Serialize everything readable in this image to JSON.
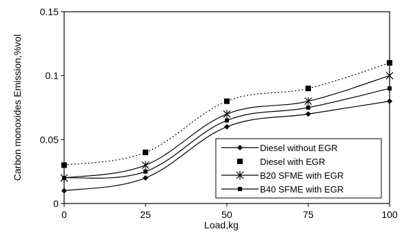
{
  "chart_data": {
    "type": "line",
    "title": "",
    "xlabel": "Load,kg",
    "ylabel": "Carbon monoxides Emission,%vol",
    "x": [
      0,
      25,
      50,
      75,
      100
    ],
    "xlim": [
      0,
      100
    ],
    "ylim": [
      0,
      0.15
    ],
    "x_ticks": [
      "0",
      "25",
      "50",
      "75",
      "100"
    ],
    "y_ticks": [
      "0",
      "0.05",
      "0.1",
      "0.15"
    ],
    "grid": false,
    "legend_position": "bottom-right",
    "series": [
      {
        "name": "Diesel without  EGR",
        "values": [
          0.01,
          0.02,
          0.06,
          0.07,
          0.08
        ],
        "marker": "diamond",
        "line": "solid",
        "color": "#000000"
      },
      {
        "name": "Diesel with EGR",
        "values": [
          0.03,
          0.04,
          0.08,
          0.09,
          0.11
        ],
        "marker": "square",
        "line": "dotted",
        "color": "#000000"
      },
      {
        "name": "B20 SFME with EGR",
        "values": [
          0.02,
          0.03,
          0.07,
          0.08,
          0.1
        ],
        "marker": "star",
        "line": "solid",
        "color": "#000000"
      },
      {
        "name": "B40 SFME with EGR",
        "values": [
          0.02,
          0.025,
          0.065,
          0.075,
          0.09
        ],
        "marker": "small-square",
        "line": "solid",
        "color": "#000000"
      }
    ]
  }
}
